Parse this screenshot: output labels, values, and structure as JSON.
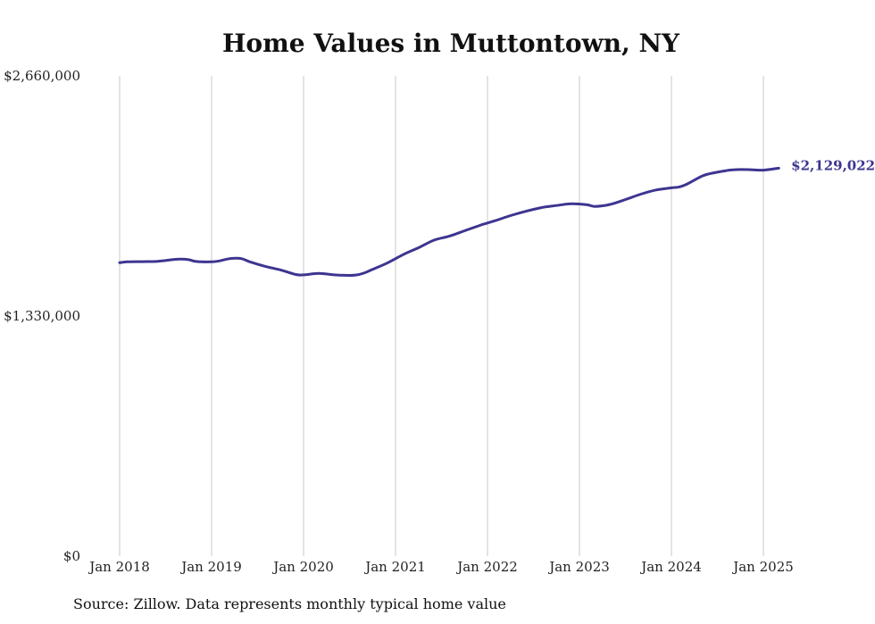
{
  "title": "Home Values in Muttontown, NY",
  "source": "Source: Zillow. Data represents monthly typical home value",
  "colors": {
    "line": "#3d3590",
    "grid": "#c8c8c8",
    "text": "#222222"
  },
  "chart_data": {
    "type": "line",
    "title": "Home Values in Muttontown, NY",
    "xlabel": "",
    "ylabel": "",
    "x_ticks": [
      "Jan 2018",
      "Jan 2019",
      "Jan 2020",
      "Jan 2021",
      "Jan 2022",
      "Jan 2023",
      "Jan 2024",
      "Jan 2025"
    ],
    "y_ticks": [
      "$0",
      "$1,330,000",
      "$2,660,000"
    ],
    "y_tick_values": [
      0,
      1330000,
      2660000
    ],
    "ylim": [
      0,
      2660000
    ],
    "xlim": [
      "2018-01",
      "2025-04"
    ],
    "grid": "vertical",
    "end_label": "$2,129,022",
    "series": [
      {
        "points": [
          [
            "2018-01",
            1625000
          ],
          [
            "2018-02",
            1630000
          ],
          [
            "2018-04",
            1631000
          ],
          [
            "2018-06",
            1633000
          ],
          [
            "2018-08",
            1643000
          ],
          [
            "2018-09",
            1645000
          ],
          [
            "2018-10",
            1642000
          ],
          [
            "2018-11",
            1632000
          ],
          [
            "2019-01",
            1630000
          ],
          [
            "2019-02",
            1635000
          ],
          [
            "2019-03",
            1645000
          ],
          [
            "2019-04",
            1650000
          ],
          [
            "2019-05",
            1647000
          ],
          [
            "2019-06",
            1630000
          ],
          [
            "2019-08",
            1605000
          ],
          [
            "2019-10",
            1585000
          ],
          [
            "2019-12",
            1560000
          ],
          [
            "2020-01",
            1558000
          ],
          [
            "2020-03",
            1566000
          ],
          [
            "2020-05",
            1558000
          ],
          [
            "2020-07",
            1555000
          ],
          [
            "2020-08",
            1558000
          ],
          [
            "2020-09",
            1570000
          ],
          [
            "2020-10",
            1588000
          ],
          [
            "2020-12",
            1625000
          ],
          [
            "2021-02",
            1670000
          ],
          [
            "2021-04",
            1708000
          ],
          [
            "2021-06",
            1750000
          ],
          [
            "2021-08",
            1772000
          ],
          [
            "2021-10",
            1802000
          ],
          [
            "2021-12",
            1832000
          ],
          [
            "2022-02",
            1858000
          ],
          [
            "2022-04",
            1886000
          ],
          [
            "2022-06",
            1910000
          ],
          [
            "2022-08",
            1930000
          ],
          [
            "2022-10",
            1942000
          ],
          [
            "2022-12",
            1952000
          ],
          [
            "2023-02",
            1946000
          ],
          [
            "2023-03",
            1937000
          ],
          [
            "2023-05",
            1948000
          ],
          [
            "2023-07",
            1975000
          ],
          [
            "2023-09",
            2005000
          ],
          [
            "2023-11",
            2028000
          ],
          [
            "2024-01",
            2040000
          ],
          [
            "2024-02",
            2045000
          ],
          [
            "2024-03",
            2060000
          ],
          [
            "2024-05",
            2105000
          ],
          [
            "2024-06",
            2118000
          ],
          [
            "2024-08",
            2134000
          ],
          [
            "2024-09",
            2140000
          ],
          [
            "2024-11",
            2141000
          ],
          [
            "2025-01",
            2138000
          ],
          [
            "2025-03",
            2149000
          ]
        ]
      }
    ]
  }
}
